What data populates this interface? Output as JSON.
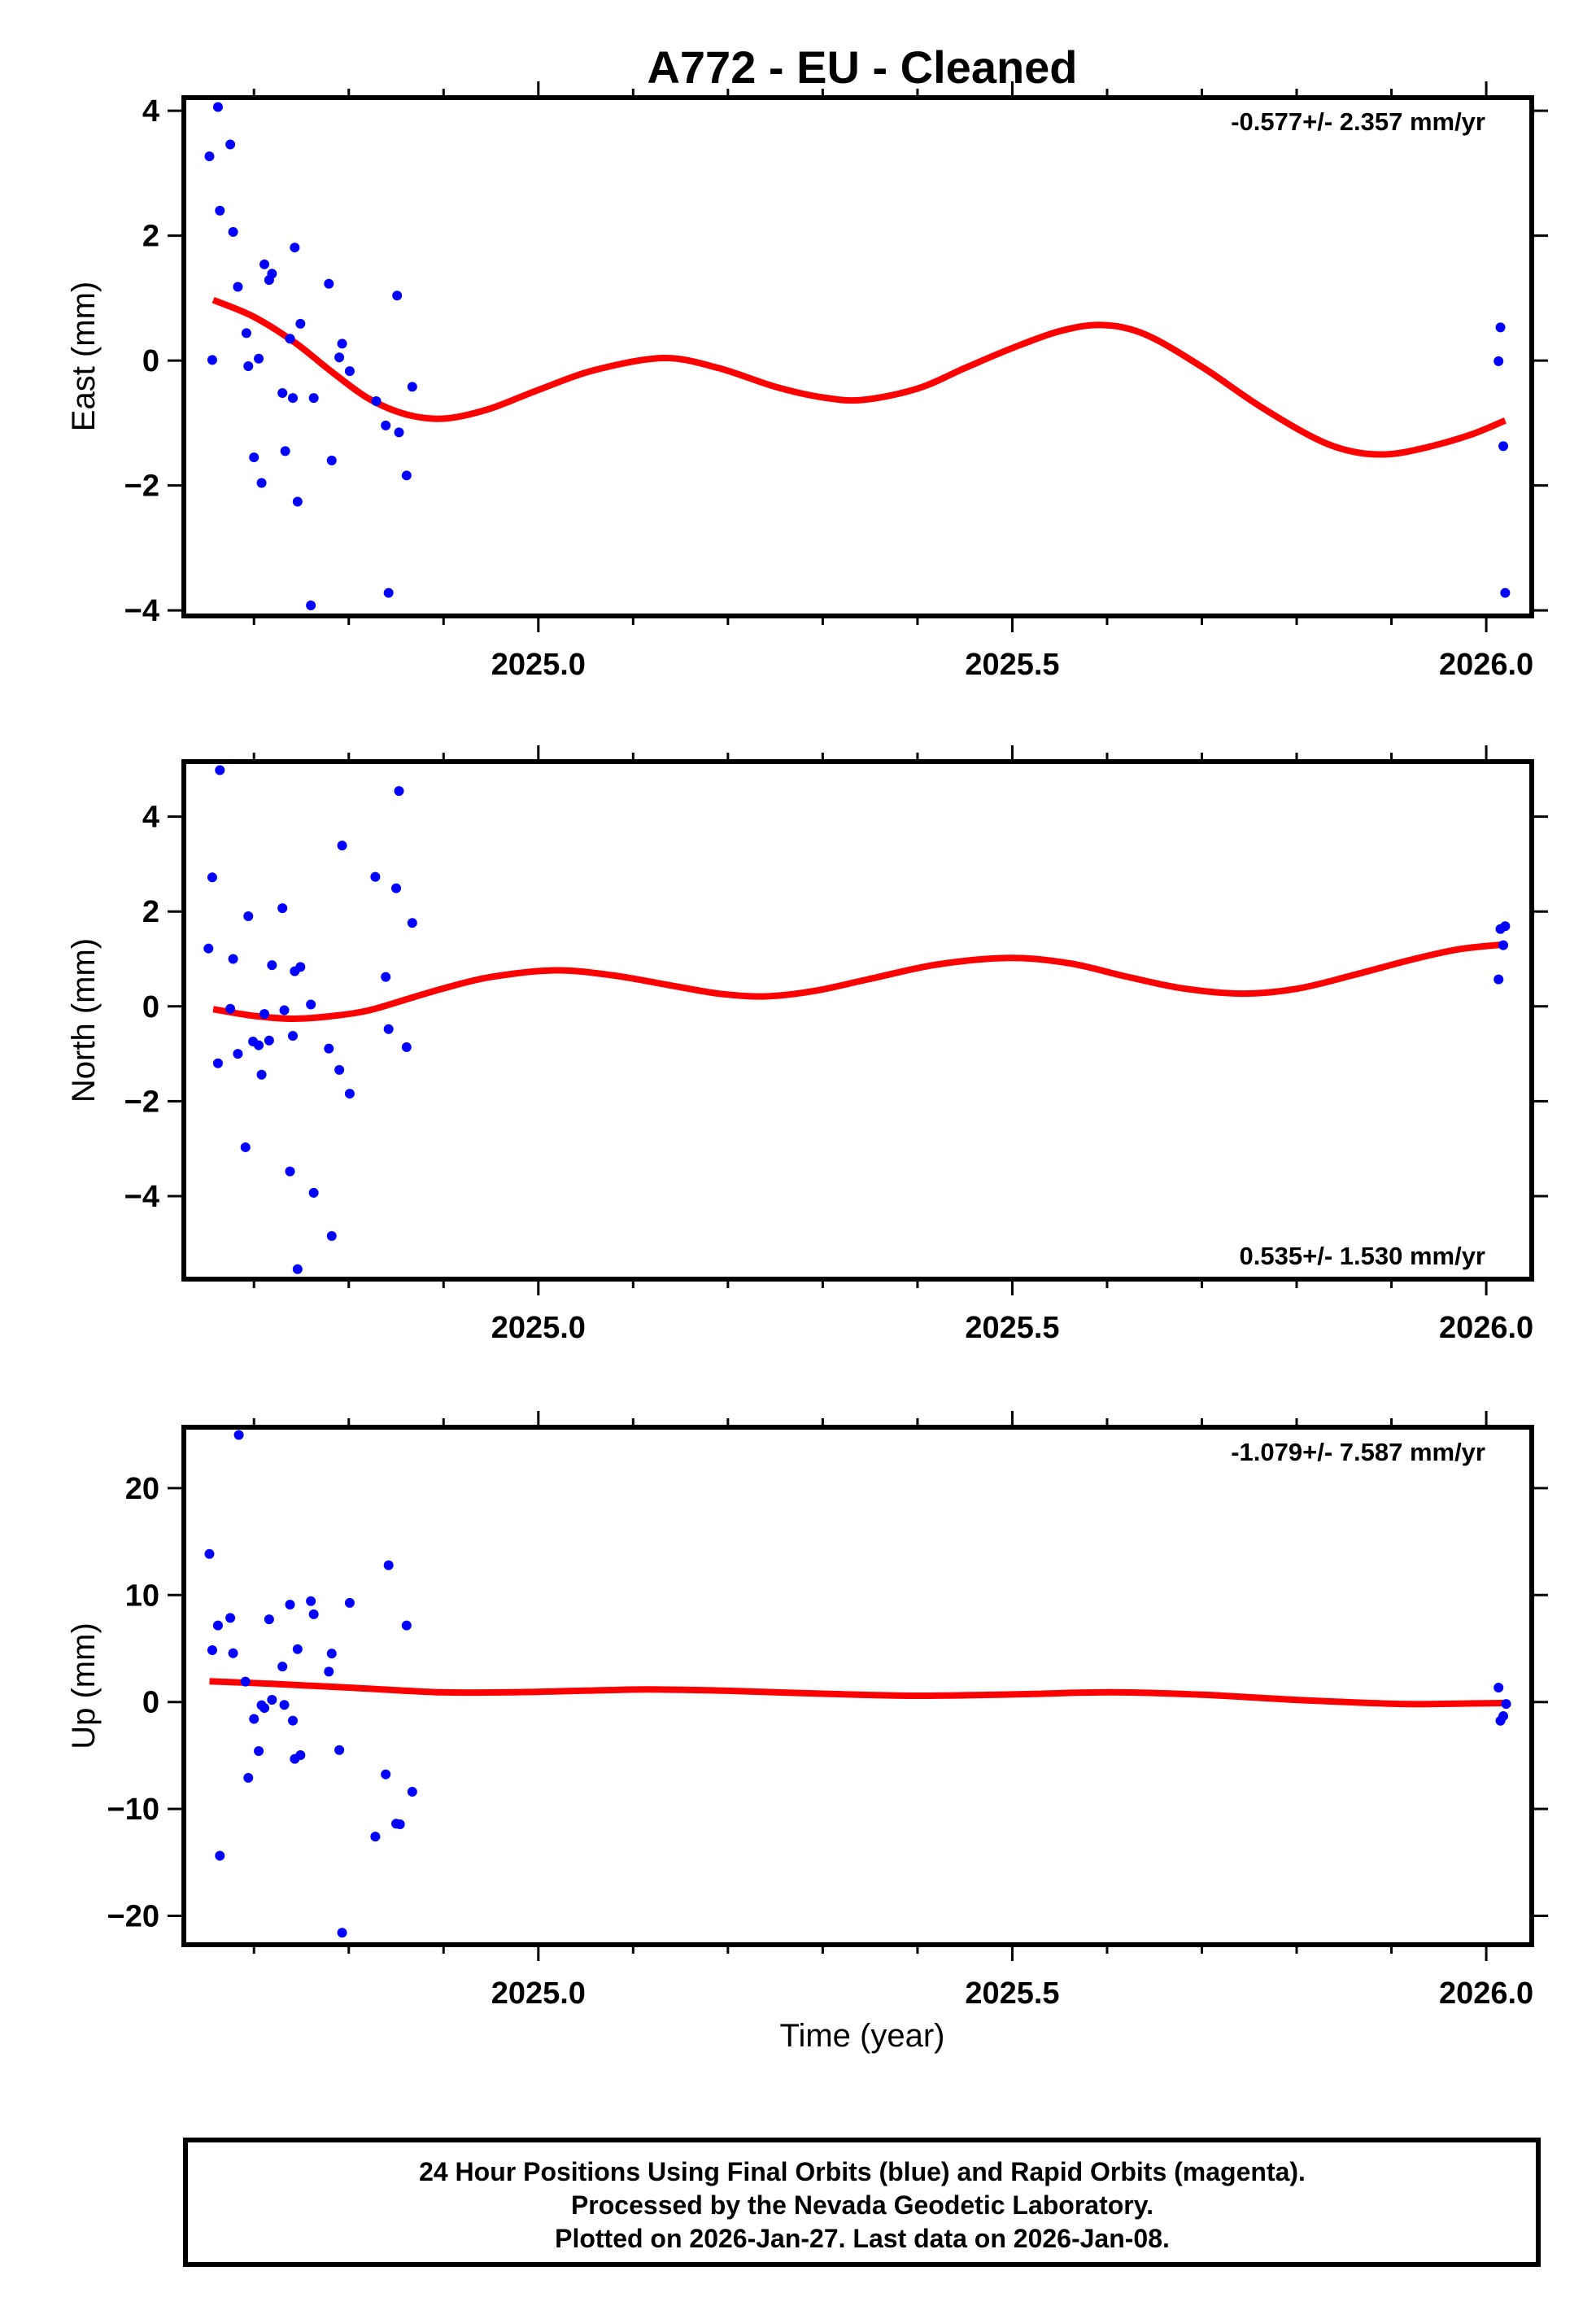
{
  "chart_data": {
    "type": "scatter",
    "title": "A772  - EU - Cleaned",
    "xlabel": "Time (year)",
    "xlim": [
      2024.626,
      2026.048
    ],
    "x_major_ticks": [
      2025.0,
      2025.5,
      2026.0
    ],
    "x_tick_labels": [
      "2025.0",
      "2025.5",
      "2026.0"
    ],
    "x_minor_step": 0.1,
    "grid": false,
    "point_color": "#0000ff",
    "fit_color": "#ff0000",
    "panels": [
      {
        "id": "east",
        "ylabel": "East (mm)",
        "ylim": [
          -4.09,
          4.21
        ],
        "y_ticks": [
          -4,
          -2,
          0,
          2,
          4
        ],
        "y_tick_labels": [
          "−4",
          "−2",
          "0",
          "2",
          "4"
        ],
        "rate_text": "-0.577+/- 2.357 mm/yr",
        "rate_position": "top-right",
        "points": [
          [
            2024.662,
            4.06
          ],
          [
            2024.675,
            3.46
          ],
          [
            2024.653,
            3.27
          ],
          [
            2024.664,
            2.4
          ],
          [
            2024.678,
            2.06
          ],
          [
            2024.743,
            1.81
          ],
          [
            2024.711,
            1.54
          ],
          [
            2024.719,
            1.39
          ],
          [
            2024.716,
            1.29
          ],
          [
            2024.683,
            1.18
          ],
          [
            2024.779,
            1.23
          ],
          [
            2024.851,
            1.04
          ],
          [
            2024.749,
            0.59
          ],
          [
            2024.692,
            0.44
          ],
          [
            2024.738,
            0.35
          ],
          [
            2024.793,
            0.27
          ],
          [
            2024.656,
            0.01
          ],
          [
            2024.694,
            -0.09
          ],
          [
            2024.705,
            0.03
          ],
          [
            2024.79,
            0.05
          ],
          [
            2024.801,
            -0.17
          ],
          [
            2024.867,
            -0.42
          ],
          [
            2024.73,
            -0.52
          ],
          [
            2024.741,
            -0.6
          ],
          [
            2024.763,
            -0.6
          ],
          [
            2024.829,
            -0.65
          ],
          [
            2024.839,
            -1.04
          ],
          [
            2024.853,
            -1.15
          ],
          [
            2024.733,
            -1.45
          ],
          [
            2024.7,
            -1.55
          ],
          [
            2024.782,
            -1.6
          ],
          [
            2024.861,
            -1.84
          ],
          [
            2024.708,
            -1.96
          ],
          [
            2024.746,
            -2.26
          ],
          [
            2024.842,
            -3.72
          ],
          [
            2024.76,
            -3.92
          ],
          [
            2026.015,
            0.53
          ],
          [
            2026.013,
            -0.01
          ],
          [
            2026.018,
            -1.37
          ],
          [
            2026.02,
            -3.72
          ]
        ],
        "fit": [
          [
            2024.657,
            0.97
          ],
          [
            2024.7,
            0.7
          ],
          [
            2024.743,
            0.29
          ],
          [
            2024.782,
            -0.18
          ],
          [
            2024.821,
            -0.61
          ],
          [
            2024.86,
            -0.86
          ],
          [
            2024.9,
            -0.93
          ],
          [
            2024.947,
            -0.78
          ],
          [
            2025.0,
            -0.47
          ],
          [
            2025.06,
            -0.15
          ],
          [
            2025.132,
            0.04
          ],
          [
            2025.19,
            -0.12
          ],
          [
            2025.25,
            -0.42
          ],
          [
            2025.3,
            -0.59
          ],
          [
            2025.342,
            -0.63
          ],
          [
            2025.4,
            -0.45
          ],
          [
            2025.45,
            -0.12
          ],
          [
            2025.5,
            0.2
          ],
          [
            2025.55,
            0.47
          ],
          [
            2025.594,
            0.57
          ],
          [
            2025.64,
            0.42
          ],
          [
            2025.7,
            -0.1
          ],
          [
            2025.76,
            -0.72
          ],
          [
            2025.82,
            -1.25
          ],
          [
            2025.86,
            -1.46
          ],
          [
            2025.897,
            -1.5
          ],
          [
            2025.94,
            -1.38
          ],
          [
            2025.985,
            -1.18
          ],
          [
            2026.02,
            -0.96
          ]
        ]
      },
      {
        "id": "north",
        "ylabel": "North (mm)",
        "ylim": [
          -5.75,
          5.16
        ],
        "y_ticks": [
          -4,
          -2,
          0,
          2,
          4
        ],
        "y_tick_labels": [
          "−4",
          "−2",
          "0",
          "2",
          "4"
        ],
        "rate_text": "0.535+/- 1.530 mm/yr",
        "rate_position": "bottom-right",
        "points": [
          [
            2024.664,
            4.98
          ],
          [
            2024.853,
            4.54
          ],
          [
            2024.793,
            3.39
          ],
          [
            2024.656,
            2.72
          ],
          [
            2024.828,
            2.73
          ],
          [
            2024.85,
            2.49
          ],
          [
            2024.73,
            2.07
          ],
          [
            2024.694,
            1.9
          ],
          [
            2024.867,
            1.76
          ],
          [
            2024.652,
            1.22
          ],
          [
            2024.678,
            1.0
          ],
          [
            2024.719,
            0.87
          ],
          [
            2024.749,
            0.83
          ],
          [
            2024.743,
            0.74
          ],
          [
            2024.839,
            0.62
          ],
          [
            2024.675,
            -0.05
          ],
          [
            2024.76,
            0.04
          ],
          [
            2024.711,
            -0.16
          ],
          [
            2024.732,
            -0.08
          ],
          [
            2024.842,
            -0.48
          ],
          [
            2024.741,
            -0.62
          ],
          [
            2024.699,
            -0.74
          ],
          [
            2024.705,
            -0.82
          ],
          [
            2024.716,
            -0.72
          ],
          [
            2024.861,
            -0.86
          ],
          [
            2024.779,
            -0.89
          ],
          [
            2024.683,
            -1.0
          ],
          [
            2024.662,
            -1.2
          ],
          [
            2024.79,
            -1.34
          ],
          [
            2024.708,
            -1.44
          ],
          [
            2024.801,
            -1.84
          ],
          [
            2024.691,
            -2.97
          ],
          [
            2024.738,
            -3.48
          ],
          [
            2024.763,
            -3.93
          ],
          [
            2024.782,
            -4.84
          ],
          [
            2024.746,
            -5.54
          ],
          [
            2026.02,
            1.69
          ],
          [
            2026.015,
            1.63
          ],
          [
            2026.018,
            1.29
          ],
          [
            2026.013,
            0.57
          ]
        ],
        "fit": [
          [
            2024.657,
            -0.06
          ],
          [
            2024.7,
            -0.2
          ],
          [
            2024.741,
            -0.26
          ],
          [
            2024.78,
            -0.21
          ],
          [
            2024.82,
            -0.09
          ],
          [
            2024.861,
            0.15
          ],
          [
            2024.9,
            0.38
          ],
          [
            2024.95,
            0.62
          ],
          [
            2025.018,
            0.76
          ],
          [
            2025.08,
            0.65
          ],
          [
            2025.14,
            0.44
          ],
          [
            2025.19,
            0.27
          ],
          [
            2025.238,
            0.21
          ],
          [
            2025.29,
            0.32
          ],
          [
            2025.35,
            0.58
          ],
          [
            2025.42,
            0.88
          ],
          [
            2025.497,
            1.02
          ],
          [
            2025.56,
            0.91
          ],
          [
            2025.62,
            0.63
          ],
          [
            2025.68,
            0.38
          ],
          [
            2025.742,
            0.27
          ],
          [
            2025.8,
            0.37
          ],
          [
            2025.86,
            0.66
          ],
          [
            2025.92,
            0.98
          ],
          [
            2025.97,
            1.2
          ],
          [
            2026.016,
            1.3
          ]
        ]
      },
      {
        "id": "up",
        "ylabel": "Up (mm)",
        "ylim": [
          -22.7,
          25.7
        ],
        "y_ticks": [
          -20,
          -10,
          0,
          10,
          20
        ],
        "y_tick_labels": [
          "−20",
          "−10",
          "0",
          "10",
          "20"
        ],
        "rate_text": "-1.079+/- 7.587 mm/yr",
        "rate_position": "top-right",
        "points": [
          [
            2024.684,
            24.98
          ],
          [
            2024.653,
            13.85
          ],
          [
            2024.842,
            12.79
          ],
          [
            2024.76,
            9.43
          ],
          [
            2024.738,
            9.11
          ],
          [
            2024.801,
            9.27
          ],
          [
            2024.763,
            8.21
          ],
          [
            2024.675,
            7.86
          ],
          [
            2024.716,
            7.73
          ],
          [
            2024.662,
            7.16
          ],
          [
            2024.861,
            7.16
          ],
          [
            2024.656,
            4.85
          ],
          [
            2024.678,
            4.56
          ],
          [
            2024.746,
            4.94
          ],
          [
            2024.782,
            4.53
          ],
          [
            2024.73,
            3.32
          ],
          [
            2024.779,
            2.84
          ],
          [
            2024.691,
            1.91
          ],
          [
            2024.719,
            0.21
          ],
          [
            2024.708,
            -0.3
          ],
          [
            2024.711,
            -0.56
          ],
          [
            2024.732,
            -0.27
          ],
          [
            2024.7,
            -1.58
          ],
          [
            2024.741,
            -1.74
          ],
          [
            2024.705,
            -4.59
          ],
          [
            2024.79,
            -4.49
          ],
          [
            2024.749,
            -4.97
          ],
          [
            2024.743,
            -5.32
          ],
          [
            2024.694,
            -7.09
          ],
          [
            2024.839,
            -6.77
          ],
          [
            2024.867,
            -8.39
          ],
          [
            2024.85,
            -11.38
          ],
          [
            2024.854,
            -11.44
          ],
          [
            2024.828,
            -12.59
          ],
          [
            2024.664,
            -14.38
          ],
          [
            2024.793,
            -21.58
          ],
          [
            2026.013,
            1.35
          ],
          [
            2026.021,
            -0.18
          ],
          [
            2026.018,
            -1.32
          ],
          [
            2026.015,
            -1.75
          ]
        ],
        "fit": [
          [
            2024.653,
            1.93
          ],
          [
            2024.72,
            1.7
          ],
          [
            2024.8,
            1.35
          ],
          [
            2024.897,
            0.91
          ],
          [
            2024.98,
            0.92
          ],
          [
            2025.05,
            1.06
          ],
          [
            2025.117,
            1.17
          ],
          [
            2025.2,
            1.05
          ],
          [
            2025.3,
            0.78
          ],
          [
            2025.398,
            0.59
          ],
          [
            2025.5,
            0.71
          ],
          [
            2025.605,
            0.91
          ],
          [
            2025.7,
            0.68
          ],
          [
            2025.8,
            0.2
          ],
          [
            2025.909,
            -0.18
          ],
          [
            2025.97,
            -0.15
          ],
          [
            2026.019,
            -0.1
          ]
        ]
      }
    ]
  },
  "caption": {
    "lines": [
      "24 Hour Positions Using Final Orbits (blue) and Rapid Orbits (magenta).",
      "Processed by the Nevada Geodetic Laboratory.",
      "Plotted on 2026-Jan-27. Last data on 2026-Jan-08."
    ]
  }
}
